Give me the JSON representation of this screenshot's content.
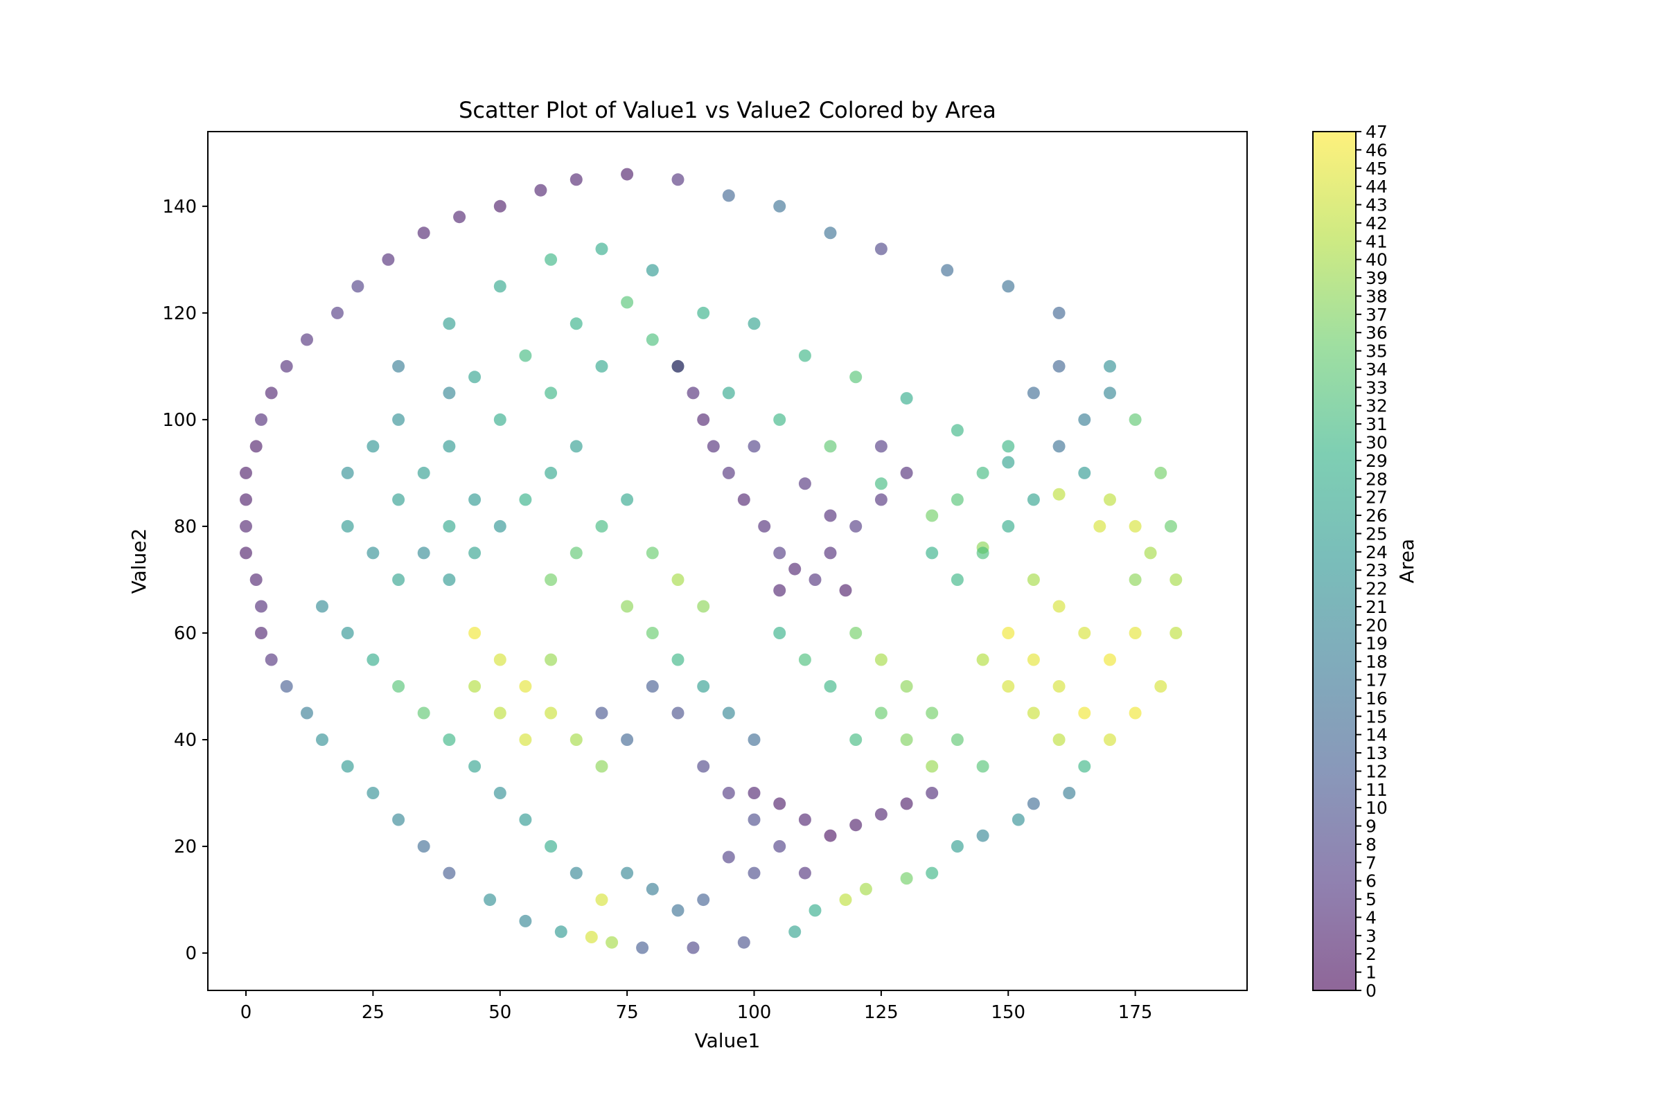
{
  "chart_data": {
    "type": "scatter",
    "title": "Scatter Plot of Value1 vs Value2 Colored by Area",
    "xlabel": "Value1",
    "ylabel": "Value2",
    "colorbar_label": "Area",
    "xlim": [
      -7.5,
      197
    ],
    "ylim": [
      -7,
      154
    ],
    "xticks": [
      0,
      25,
      50,
      75,
      100,
      125,
      150,
      175
    ],
    "yticks": [
      0,
      20,
      40,
      60,
      80,
      100,
      120,
      140
    ],
    "colorbar_range": [
      0,
      47
    ],
    "colorbar_ticks": [
      0,
      1,
      2,
      3,
      4,
      5,
      6,
      7,
      8,
      9,
      10,
      11,
      12,
      13,
      14,
      15,
      16,
      17,
      18,
      19,
      20,
      21,
      22,
      23,
      24,
      25,
      26,
      27,
      28,
      29,
      30,
      31,
      32,
      33,
      34,
      35,
      36,
      37,
      38,
      39,
      40,
      41,
      42,
      43,
      44,
      45,
      46,
      47
    ],
    "colormap": "viridis",
    "alpha": 0.6,
    "grid": false,
    "legend": "none",
    "colorbar_position": "right",
    "points": [
      [
        0,
        90,
        2
      ],
      [
        0,
        85,
        2
      ],
      [
        0,
        80,
        3
      ],
      [
        0,
        75,
        2
      ],
      [
        2,
        70,
        3
      ],
      [
        2,
        95,
        2
      ],
      [
        3,
        65,
        4
      ],
      [
        3,
        60,
        3
      ],
      [
        3,
        100,
        4
      ],
      [
        5,
        55,
        5
      ],
      [
        5,
        105,
        3
      ],
      [
        8,
        50,
        12
      ],
      [
        8,
        110,
        4
      ],
      [
        12,
        45,
        18
      ],
      [
        12,
        115,
        5
      ],
      [
        15,
        40,
        22
      ],
      [
        18,
        120,
        6
      ],
      [
        20,
        35,
        24
      ],
      [
        22,
        125,
        7
      ],
      [
        25,
        30,
        22
      ],
      [
        28,
        130,
        4
      ],
      [
        30,
        25,
        20
      ],
      [
        35,
        135,
        3
      ],
      [
        35,
        20,
        15
      ],
      [
        40,
        15,
        12
      ],
      [
        42,
        138,
        3
      ],
      [
        48,
        10,
        22
      ],
      [
        50,
        140,
        2
      ],
      [
        55,
        6,
        20
      ],
      [
        58,
        143,
        3
      ],
      [
        62,
        4,
        24
      ],
      [
        65,
        145,
        3
      ],
      [
        68,
        3,
        44
      ],
      [
        72,
        2,
        40
      ],
      [
        75,
        146,
        2
      ],
      [
        78,
        1,
        12
      ],
      [
        85,
        145,
        5
      ],
      [
        88,
        1,
        8
      ],
      [
        95,
        142,
        14
      ],
      [
        98,
        2,
        10
      ],
      [
        105,
        140,
        16
      ],
      [
        108,
        4,
        26
      ],
      [
        112,
        8,
        28
      ],
      [
        115,
        135,
        16
      ],
      [
        118,
        10,
        42
      ],
      [
        122,
        12,
        40
      ],
      [
        125,
        132,
        8
      ],
      [
        130,
        14,
        36
      ],
      [
        135,
        15,
        30
      ],
      [
        138,
        128,
        15
      ],
      [
        140,
        20,
        25
      ],
      [
        145,
        22,
        20
      ],
      [
        150,
        125,
        16
      ],
      [
        152,
        25,
        22
      ],
      [
        155,
        28,
        15
      ],
      [
        160,
        120,
        14
      ],
      [
        162,
        30,
        18
      ],
      [
        165,
        35,
        30
      ],
      [
        170,
        110,
        22
      ],
      [
        170,
        40,
        44
      ],
      [
        175,
        100,
        34
      ],
      [
        175,
        45,
        46
      ],
      [
        180,
        90,
        36
      ],
      [
        180,
        50,
        44
      ],
      [
        182,
        80,
        35
      ],
      [
        183,
        70,
        40
      ],
      [
        183,
        60,
        42
      ],
      [
        20,
        90,
        22
      ],
      [
        30,
        85,
        25
      ],
      [
        40,
        95,
        24
      ],
      [
        50,
        100,
        28
      ],
      [
        60,
        105,
        30
      ],
      [
        70,
        110,
        27
      ],
      [
        80,
        115,
        32
      ],
      [
        90,
        120,
        29
      ],
      [
        100,
        118,
        26
      ],
      [
        110,
        112,
        30
      ],
      [
        120,
        108,
        33
      ],
      [
        130,
        104,
        28
      ],
      [
        140,
        98,
        30
      ],
      [
        150,
        92,
        26
      ],
      [
        160,
        86,
        42
      ],
      [
        168,
        80,
        44
      ],
      [
        30,
        110,
        18
      ],
      [
        40,
        118,
        25
      ],
      [
        50,
        125,
        27
      ],
      [
        60,
        130,
        30
      ],
      [
        70,
        132,
        28
      ],
      [
        80,
        128,
        24
      ],
      [
        45,
        108,
        26
      ],
      [
        55,
        112,
        31
      ],
      [
        65,
        118,
        29
      ],
      [
        75,
        122,
        33
      ],
      [
        85,
        110,
        28
      ],
      [
        95,
        105,
        27
      ],
      [
        105,
        100,
        30
      ],
      [
        115,
        95,
        34
      ],
      [
        125,
        88,
        31
      ],
      [
        135,
        82,
        36
      ],
      [
        145,
        76,
        38
      ],
      [
        155,
        70,
        40
      ],
      [
        160,
        65,
        44
      ],
      [
        90,
        100,
        3
      ],
      [
        92,
        95,
        4
      ],
      [
        95,
        90,
        5
      ],
      [
        98,
        85,
        3
      ],
      [
        102,
        80,
        4
      ],
      [
        105,
        75,
        6
      ],
      [
        108,
        72,
        3
      ],
      [
        112,
        70,
        5
      ],
      [
        115,
        75,
        4
      ],
      [
        118,
        68,
        2
      ],
      [
        120,
        80,
        6
      ],
      [
        125,
        85,
        5
      ],
      [
        100,
        95,
        7
      ],
      [
        88,
        105,
        4
      ],
      [
        85,
        110,
        3
      ],
      [
        110,
        88,
        5
      ],
      [
        115,
        82,
        4
      ],
      [
        105,
        68,
        3
      ],
      [
        20,
        80,
        24
      ],
      [
        25,
        75,
        22
      ],
      [
        30,
        70,
        26
      ],
      [
        15,
        65,
        21
      ],
      [
        20,
        60,
        23
      ],
      [
        25,
        55,
        28
      ],
      [
        30,
        50,
        33
      ],
      [
        35,
        45,
        34
      ],
      [
        40,
        40,
        30
      ],
      [
        45,
        35,
        26
      ],
      [
        50,
        30,
        22
      ],
      [
        55,
        25,
        24
      ],
      [
        60,
        20,
        28
      ],
      [
        65,
        15,
        20
      ],
      [
        70,
        10,
        44
      ],
      [
        45,
        60,
        46
      ],
      [
        50,
        55,
        44
      ],
      [
        55,
        50,
        45
      ],
      [
        60,
        45,
        43
      ],
      [
        65,
        40,
        40
      ],
      [
        70,
        35,
        38
      ],
      [
        50,
        45,
        42
      ],
      [
        55,
        40,
        44
      ],
      [
        45,
        50,
        41
      ],
      [
        60,
        55,
        39
      ],
      [
        75,
        65,
        38
      ],
      [
        80,
        60,
        35
      ],
      [
        85,
        55,
        30
      ],
      [
        90,
        50,
        25
      ],
      [
        95,
        45,
        20
      ],
      [
        100,
        40,
        15
      ],
      [
        80,
        50,
        12
      ],
      [
        85,
        45,
        10
      ],
      [
        75,
        40,
        14
      ],
      [
        70,
        45,
        11
      ],
      [
        90,
        35,
        8
      ],
      [
        95,
        30,
        6
      ],
      [
        100,
        25,
        9
      ],
      [
        105,
        20,
        7
      ],
      [
        110,
        15,
        5
      ],
      [
        120,
        60,
        36
      ],
      [
        125,
        55,
        40
      ],
      [
        130,
        50,
        38
      ],
      [
        135,
        45,
        36
      ],
      [
        140,
        40,
        34
      ],
      [
        145,
        35,
        33
      ],
      [
        125,
        45,
        35
      ],
      [
        130,
        40,
        37
      ],
      [
        135,
        35,
        39
      ],
      [
        120,
        40,
        31
      ],
      [
        115,
        50,
        30
      ],
      [
        110,
        55,
        32
      ],
      [
        105,
        60,
        29
      ],
      [
        150,
        60,
        46
      ],
      [
        155,
        55,
        45
      ],
      [
        160,
        50,
        44
      ],
      [
        165,
        45,
        46
      ],
      [
        150,
        50,
        44
      ],
      [
        155,
        45,
        43
      ],
      [
        160,
        40,
        42
      ],
      [
        145,
        55,
        41
      ],
      [
        165,
        60,
        44
      ],
      [
        170,
        55,
        46
      ],
      [
        175,
        60,
        45
      ],
      [
        60,
        70,
        36
      ],
      [
        65,
        75,
        34
      ],
      [
        70,
        80,
        31
      ],
      [
        55,
        85,
        29
      ],
      [
        60,
        90,
        27
      ],
      [
        65,
        95,
        25
      ],
      [
        75,
        85,
        27
      ],
      [
        80,
        75,
        35
      ],
      [
        85,
        70,
        40
      ],
      [
        90,
        65,
        38
      ],
      [
        100,
        30,
        3
      ],
      [
        105,
        28,
        2
      ],
      [
        110,
        25,
        3
      ],
      [
        115,
        22,
        1
      ],
      [
        120,
        24,
        2
      ],
      [
        125,
        26,
        3
      ],
      [
        130,
        28,
        2
      ],
      [
        135,
        30,
        4
      ],
      [
        95,
        18,
        7
      ],
      [
        100,
        15,
        9
      ],
      [
        90,
        10,
        13
      ],
      [
        85,
        8,
        16
      ],
      [
        80,
        12,
        18
      ],
      [
        75,
        15,
        20
      ],
      [
        40,
        70,
        24
      ],
      [
        45,
        75,
        26
      ],
      [
        50,
        80,
        23
      ],
      [
        35,
        75,
        21
      ],
      [
        40,
        80,
        27
      ],
      [
        45,
        85,
        24
      ],
      [
        35,
        90,
        25
      ],
      [
        25,
        95,
        23
      ],
      [
        30,
        100,
        22
      ],
      [
        40,
        105,
        20
      ],
      [
        140,
        70,
        30
      ],
      [
        145,
        75,
        32
      ],
      [
        150,
        80,
        28
      ],
      [
        155,
        85,
        26
      ],
      [
        135,
        75,
        29
      ],
      [
        140,
        85,
        33
      ],
      [
        145,
        90,
        31
      ],
      [
        150,
        95,
        30
      ],
      [
        130,
        90,
        4
      ],
      [
        125,
        95,
        6
      ],
      [
        160,
        95,
        16
      ],
      [
        165,
        100,
        18
      ],
      [
        170,
        105,
        20
      ],
      [
        160,
        110,
        14
      ],
      [
        155,
        105,
        15
      ],
      [
        165,
        90,
        24
      ],
      [
        170,
        85,
        42
      ],
      [
        175,
        80,
        44
      ],
      [
        178,
        75,
        40
      ],
      [
        175,
        70,
        38
      ]
    ]
  }
}
